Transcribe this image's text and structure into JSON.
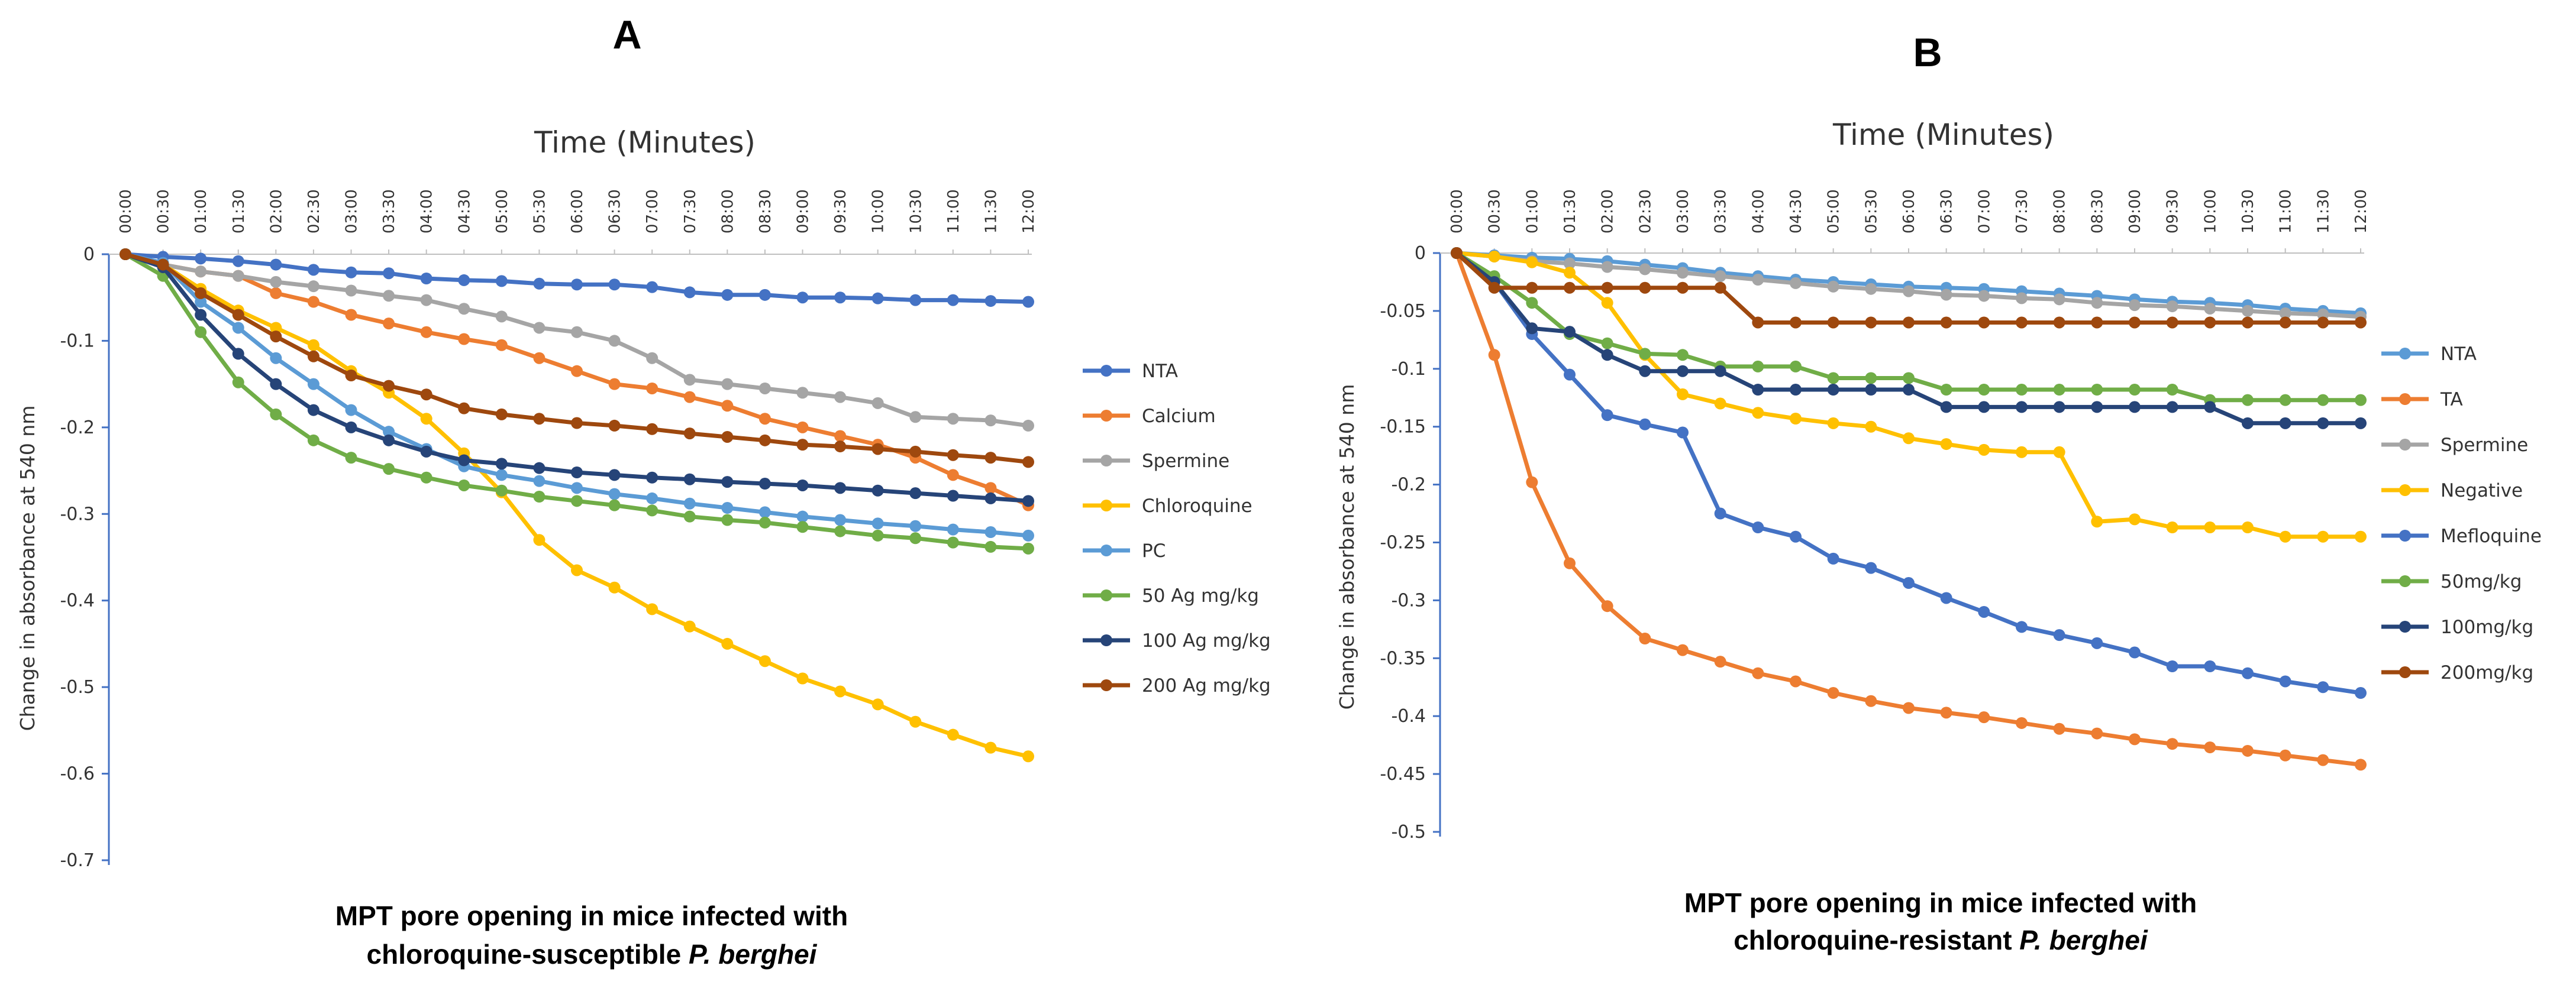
{
  "chart_data": [
    {
      "type": "line",
      "panel_label": "A",
      "title": "Time (Minutes)",
      "ylabel": "Change in absorbance at 540 nm",
      "xlabel": "Time (Minutes)",
      "ylim": [
        -0.7,
        0
      ],
      "y_ticks": [
        "0",
        "-0.1",
        "-0.2",
        "-0.3",
        "-0.4",
        "-0.5",
        "-0.6",
        "-0.7"
      ],
      "caption_line1": "MPT pore opening in mice infected with",
      "caption_line2_prefix": "chloroquine-susceptible ",
      "caption_line2_italic": "P. berghei",
      "categories": [
        "00:00",
        "00:30",
        "01:00",
        "01:30",
        "02:00",
        "02:30",
        "03:00",
        "03:30",
        "04:00",
        "04:30",
        "05:00",
        "05:30",
        "06:00",
        "06:30",
        "07:00",
        "07:30",
        "08:00",
        "08:30",
        "09:00",
        "09:30",
        "10:00",
        "10:30",
        "11:00",
        "11:30",
        "12:00"
      ],
      "series": [
        {
          "name": "NTA",
          "color": "#4472C4",
          "values": [
            0,
            -0.003,
            -0.005,
            -0.008,
            -0.012,
            -0.018,
            -0.021,
            -0.022,
            -0.028,
            -0.03,
            -0.031,
            -0.034,
            -0.035,
            -0.035,
            -0.038,
            -0.044,
            -0.047,
            -0.047,
            -0.05,
            -0.05,
            -0.051,
            -0.053,
            -0.053,
            -0.054,
            -0.055
          ]
        },
        {
          "name": "Calcium",
          "color": "#ED7D31",
          "values": [
            0,
            -0.012,
            -0.02,
            -0.025,
            -0.045,
            -0.055,
            -0.07,
            -0.08,
            -0.09,
            -0.098,
            -0.105,
            -0.12,
            -0.135,
            -0.15,
            -0.155,
            -0.165,
            -0.175,
            -0.19,
            -0.2,
            -0.21,
            -0.22,
            -0.235,
            -0.255,
            -0.27,
            -0.29
          ]
        },
        {
          "name": "Spermine",
          "color": "#A5A5A5",
          "values": [
            0,
            -0.012,
            -0.02,
            -0.025,
            -0.032,
            -0.037,
            -0.042,
            -0.048,
            -0.053,
            -0.063,
            -0.072,
            -0.085,
            -0.09,
            -0.1,
            -0.12,
            -0.145,
            -0.15,
            -0.155,
            -0.16,
            -0.165,
            -0.172,
            -0.188,
            -0.19,
            -0.192,
            -0.198
          ]
        },
        {
          "name": "Chloroquine",
          "color": "#FFC000",
          "values": [
            0,
            -0.012,
            -0.04,
            -0.065,
            -0.085,
            -0.105,
            -0.135,
            -0.16,
            -0.19,
            -0.23,
            -0.275,
            -0.33,
            -0.365,
            -0.385,
            -0.41,
            -0.43,
            -0.45,
            -0.47,
            -0.49,
            -0.505,
            -0.52,
            -0.54,
            -0.555,
            -0.57,
            -0.58
          ]
        },
        {
          "name": "PC",
          "color": "#5B9BD5",
          "values": [
            0,
            -0.01,
            -0.055,
            -0.085,
            -0.12,
            -0.15,
            -0.18,
            -0.205,
            -0.225,
            -0.245,
            -0.255,
            -0.262,
            -0.27,
            -0.277,
            -0.282,
            -0.288,
            -0.293,
            -0.298,
            -0.303,
            -0.307,
            -0.311,
            -0.314,
            -0.318,
            -0.321,
            -0.325
          ]
        },
        {
          "name": "50 Ag mg/kg",
          "color": "#70AD47",
          "values": [
            0,
            -0.025,
            -0.09,
            -0.148,
            -0.185,
            -0.215,
            -0.235,
            -0.248,
            -0.258,
            -0.267,
            -0.273,
            -0.28,
            -0.285,
            -0.29,
            -0.296,
            -0.303,
            -0.307,
            -0.31,
            -0.315,
            -0.32,
            -0.325,
            -0.328,
            -0.333,
            -0.338,
            -0.34
          ]
        },
        {
          "name": "100 Ag mg/kg",
          "color": "#264478",
          "values": [
            0,
            -0.015,
            -0.07,
            -0.115,
            -0.15,
            -0.18,
            -0.2,
            -0.215,
            -0.228,
            -0.238,
            -0.242,
            -0.247,
            -0.252,
            -0.255,
            -0.258,
            -0.26,
            -0.263,
            -0.265,
            -0.267,
            -0.27,
            -0.273,
            -0.276,
            -0.279,
            -0.282,
            -0.285
          ]
        },
        {
          "name": "200 Ag mg/kg",
          "color": "#9E480E",
          "values": [
            0,
            -0.012,
            -0.045,
            -0.07,
            -0.095,
            -0.118,
            -0.14,
            -0.152,
            -0.162,
            -0.178,
            -0.185,
            -0.19,
            -0.195,
            -0.198,
            -0.202,
            -0.207,
            -0.211,
            -0.215,
            -0.22,
            -0.222,
            -0.225,
            -0.228,
            -0.232,
            -0.235,
            -0.24
          ]
        }
      ]
    },
    {
      "type": "line",
      "panel_label": "B",
      "title": "Time (Minutes)",
      "ylabel": "Change in absorbance at 540 nm",
      "xlabel": "Time (Minutes)",
      "ylim": [
        -0.5,
        0
      ],
      "y_ticks": [
        "0",
        "-0.05",
        "-0.1",
        "-0.15",
        "-0.2",
        "-0.25",
        "-0.3",
        "-0.35",
        "-0.4",
        "-0.45",
        "-0.5"
      ],
      "caption_line1": "MPT pore opening in mice infected with",
      "caption_line2_prefix": "chloroquine-resistant ",
      "caption_line2_italic": "P. berghei",
      "categories": [
        "00:00",
        "00:30",
        "01:00",
        "01:30",
        "02:00",
        "02:30",
        "03:00",
        "03:30",
        "04:00",
        "04:30",
        "05:00",
        "05:30",
        "06:00",
        "06:30",
        "07:00",
        "07:30",
        "08:00",
        "08:30",
        "09:00",
        "09:30",
        "10:00",
        "10:30",
        "11:00",
        "11:30",
        "12:00"
      ],
      "series": [
        {
          "name": "NTA",
          "color": "#5B9BD5",
          "values": [
            0,
            -0.002,
            -0.004,
            -0.005,
            -0.007,
            -0.01,
            -0.013,
            -0.017,
            -0.02,
            -0.023,
            -0.025,
            -0.027,
            -0.029,
            -0.03,
            -0.031,
            -0.033,
            -0.035,
            -0.037,
            -0.04,
            -0.042,
            -0.043,
            -0.045,
            -0.048,
            -0.05,
            -0.052
          ]
        },
        {
          "name": "TA",
          "color": "#ED7D31",
          "values": [
            0,
            -0.088,
            -0.198,
            -0.268,
            -0.305,
            -0.333,
            -0.343,
            -0.353,
            -0.363,
            -0.37,
            -0.38,
            -0.387,
            -0.393,
            -0.397,
            -0.401,
            -0.406,
            -0.411,
            -0.415,
            -0.42,
            -0.424,
            -0.427,
            -0.43,
            -0.434,
            -0.438,
            -0.442
          ]
        },
        {
          "name": "Spermine",
          "color": "#A5A5A5",
          "values": [
            0,
            -0.003,
            -0.007,
            -0.009,
            -0.012,
            -0.014,
            -0.017,
            -0.02,
            -0.023,
            -0.026,
            -0.029,
            -0.031,
            -0.033,
            -0.036,
            -0.037,
            -0.039,
            -0.04,
            -0.043,
            -0.045,
            -0.046,
            -0.048,
            -0.05,
            -0.052,
            -0.053,
            -0.055
          ]
        },
        {
          "name": "Negative",
          "color": "#FFC000",
          "values": [
            0,
            -0.003,
            -0.008,
            -0.017,
            -0.043,
            -0.088,
            -0.122,
            -0.13,
            -0.138,
            -0.143,
            -0.147,
            -0.15,
            -0.16,
            -0.165,
            -0.17,
            -0.172,
            -0.172,
            -0.232,
            -0.23,
            -0.237,
            -0.237,
            -0.237,
            -0.245,
            -0.245,
            -0.245
          ]
        },
        {
          "name": "Mefloquine",
          "color": "#4472C4",
          "values": [
            0,
            -0.025,
            -0.07,
            -0.105,
            -0.14,
            -0.148,
            -0.155,
            -0.225,
            -0.237,
            -0.245,
            -0.264,
            -0.272,
            -0.285,
            -0.298,
            -0.31,
            -0.323,
            -0.33,
            -0.337,
            -0.345,
            -0.357,
            -0.357,
            -0.363,
            -0.37,
            -0.375,
            -0.38
          ]
        },
        {
          "name": "50mg/kg",
          "color": "#70AD47",
          "values": [
            0,
            -0.02,
            -0.043,
            -0.07,
            -0.078,
            -0.087,
            -0.088,
            -0.098,
            -0.098,
            -0.098,
            -0.108,
            -0.108,
            -0.108,
            -0.118,
            -0.118,
            -0.118,
            -0.118,
            -0.118,
            -0.118,
            -0.118,
            -0.127,
            -0.127,
            -0.127,
            -0.127,
            -0.127
          ]
        },
        {
          "name": "100mg/kg",
          "color": "#264478",
          "values": [
            0,
            -0.025,
            -0.065,
            -0.068,
            -0.088,
            -0.102,
            -0.102,
            -0.102,
            -0.118,
            -0.118,
            -0.118,
            -0.118,
            -0.118,
            -0.133,
            -0.133,
            -0.133,
            -0.133,
            -0.133,
            -0.133,
            -0.133,
            -0.133,
            -0.147,
            -0.147,
            -0.147,
            -0.147
          ]
        },
        {
          "name": "200mg/kg",
          "color": "#9E480E",
          "values": [
            0,
            -0.03,
            -0.03,
            -0.03,
            -0.03,
            -0.03,
            -0.03,
            -0.03,
            -0.06,
            -0.06,
            -0.06,
            -0.06,
            -0.06,
            -0.06,
            -0.06,
            -0.06,
            -0.06,
            -0.06,
            -0.06,
            -0.06,
            -0.06,
            -0.06,
            -0.06,
            -0.06,
            -0.06
          ]
        }
      ]
    }
  ]
}
